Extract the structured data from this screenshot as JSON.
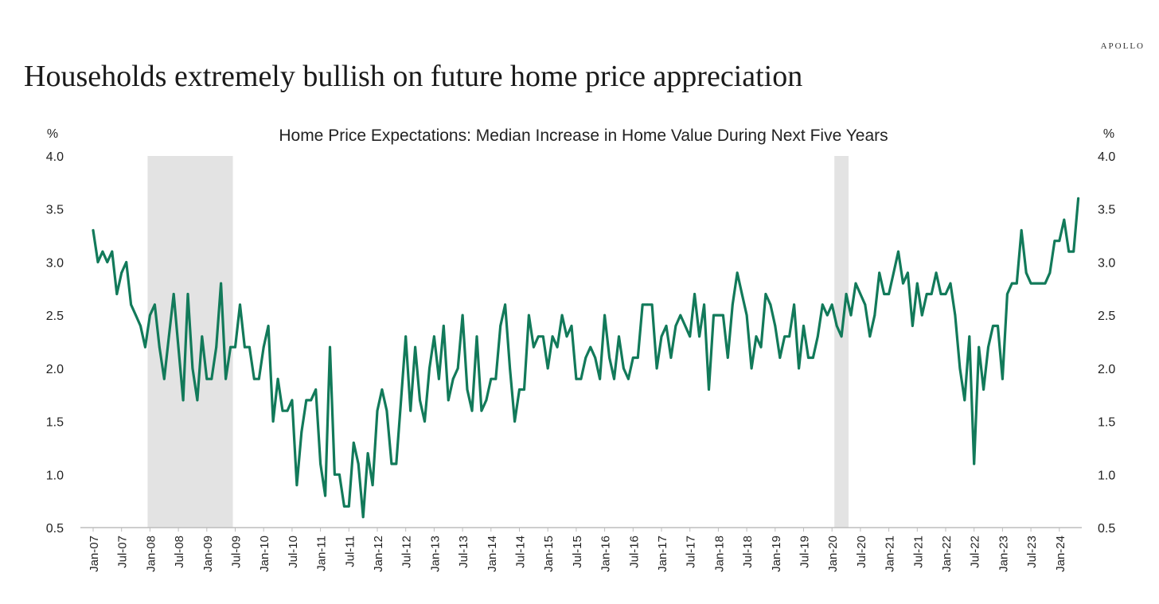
{
  "header": {
    "brand": "APOLLO",
    "headline": "Households extremely bullish on future home price appreciation"
  },
  "colors": {
    "line": "#127a5a",
    "recession": "#e3e3e3",
    "axis": "#bdbdbd",
    "text": "#222222"
  },
  "chart_data": {
    "type": "line",
    "title": "Home Price Expectations: Median Increase in Home Value During Next Five Years",
    "ylabel_left": "%",
    "ylabel_right": "%",
    "ylim": [
      0.5,
      4.0
    ],
    "yticks": [
      "0.5",
      "1.0",
      "1.5",
      "2.0",
      "2.5",
      "3.0",
      "3.5",
      "4.0"
    ],
    "xticks": [
      "Jan-07",
      "Jul-07",
      "Jan-08",
      "Jul-08",
      "Jan-09",
      "Jul-09",
      "Jan-10",
      "Jul-10",
      "Jan-11",
      "Jul-11",
      "Jan-12",
      "Jul-12",
      "Jan-13",
      "Jul-13",
      "Jan-14",
      "Jul-14",
      "Jan-15",
      "Jul-15",
      "Jan-16",
      "Jul-16",
      "Jan-17",
      "Jul-17",
      "Jan-18",
      "Jul-18",
      "Jan-19",
      "Jul-19",
      "Jan-20",
      "Jul-20",
      "Jan-21",
      "Jul-21",
      "Jan-22",
      "Jul-22",
      "Jan-23",
      "Jul-23",
      "Jan-24"
    ],
    "recessions": [
      [
        "Jan-08",
        "Jun-09"
      ],
      [
        "Feb-20",
        "Apr-20"
      ]
    ],
    "grid": false,
    "legend": "none",
    "series": [
      {
        "start": "Jan-07",
        "frequency": "monthly",
        "values": [
          3.3,
          3.0,
          3.1,
          3.0,
          3.1,
          2.7,
          2.9,
          3.0,
          2.6,
          2.5,
          2.4,
          2.2,
          2.5,
          2.6,
          2.2,
          1.9,
          2.3,
          2.7,
          2.2,
          1.7,
          2.7,
          2.0,
          1.7,
          2.3,
          1.9,
          1.9,
          2.2,
          2.8,
          1.9,
          2.2,
          2.2,
          2.6,
          2.2,
          2.2,
          1.9,
          1.9,
          2.2,
          2.4,
          1.5,
          1.9,
          1.6,
          1.6,
          1.7,
          0.9,
          1.4,
          1.7,
          1.7,
          1.8,
          1.1,
          0.8,
          2.2,
          1.0,
          1.0,
          0.7,
          0.7,
          1.3,
          1.1,
          0.6,
          1.2,
          0.9,
          1.6,
          1.8,
          1.6,
          1.1,
          1.1,
          1.7,
          2.3,
          1.6,
          2.2,
          1.7,
          1.5,
          2.0,
          2.3,
          1.9,
          2.4,
          1.7,
          1.9,
          2.0,
          2.5,
          1.8,
          1.6,
          2.3,
          1.6,
          1.7,
          1.9,
          1.9,
          2.4,
          2.6,
          2.0,
          1.5,
          1.8,
          1.8,
          2.5,
          2.2,
          2.3,
          2.3,
          2.0,
          2.3,
          2.2,
          2.5,
          2.3,
          2.4,
          1.9,
          1.9,
          2.1,
          2.2,
          2.1,
          1.9,
          2.5,
          2.1,
          1.9,
          2.3,
          2.0,
          1.9,
          2.1,
          2.1,
          2.6,
          2.6,
          2.6,
          2.0,
          2.3,
          2.4,
          2.1,
          2.4,
          2.5,
          2.4,
          2.3,
          2.7,
          2.3,
          2.6,
          1.8,
          2.5,
          2.5,
          2.5,
          2.1,
          2.6,
          2.9,
          2.7,
          2.5,
          2.0,
          2.3,
          2.2,
          2.7,
          2.6,
          2.4,
          2.1,
          2.3,
          2.3,
          2.6,
          2.0,
          2.4,
          2.1,
          2.1,
          2.3,
          2.6,
          2.5,
          2.6,
          2.4,
          2.3,
          2.7,
          2.5,
          2.8,
          2.7,
          2.6,
          2.3,
          2.5,
          2.9,
          2.7,
          2.7,
          2.9,
          3.1,
          2.8,
          2.9,
          2.4,
          2.8,
          2.5,
          2.7,
          2.7,
          2.9,
          2.7,
          2.7,
          2.8,
          2.5,
          2.0,
          1.7,
          2.3,
          1.1,
          2.2,
          1.8,
          2.2,
          2.4,
          2.4,
          1.9,
          2.7,
          2.8,
          2.8,
          3.3,
          2.9,
          2.8,
          2.8,
          2.8,
          2.8,
          2.9,
          3.2,
          3.2,
          3.4,
          3.1,
          3.1,
          3.6
        ]
      }
    ]
  }
}
